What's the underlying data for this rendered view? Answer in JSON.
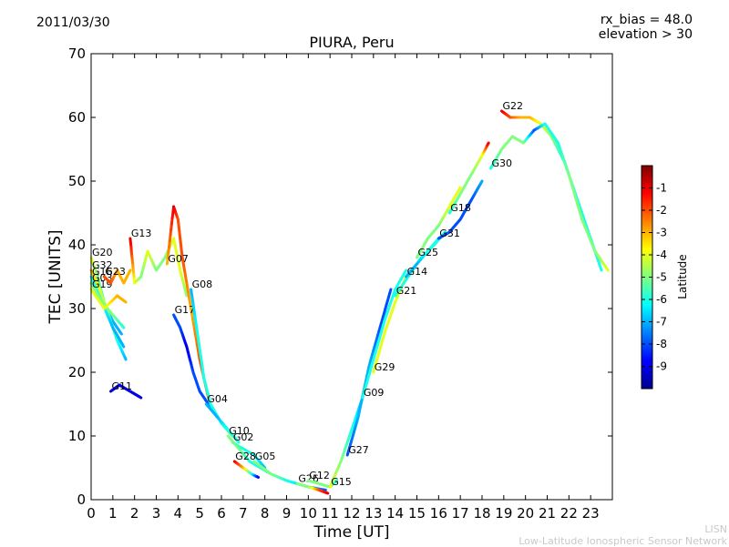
{
  "header": {
    "date": "2011/03/30",
    "rx_bias": "rx_bias = 48.0",
    "elevation": "elevation > 30"
  },
  "watermark": {
    "line1": "LISN",
    "line2": "Low-Latitude Ionospheric Sensor Network"
  },
  "chart_data": {
    "type": "scatter",
    "title": "PIURA, Peru",
    "xlabel": "Time [UT]",
    "ylabel": "TEC [UNITS]",
    "xlim": [
      0,
      24
    ],
    "ylim": [
      0,
      70
    ],
    "xticks": [
      0,
      1,
      2,
      3,
      4,
      5,
      6,
      7,
      8,
      9,
      10,
      11,
      12,
      13,
      14,
      15,
      16,
      17,
      18,
      19,
      20,
      21,
      22,
      23
    ],
    "yticks": [
      0,
      10,
      20,
      30,
      40,
      50,
      60,
      70
    ],
    "grid": false,
    "colorbar": {
      "label": "Latitude",
      "range": [
        -10,
        0
      ],
      "ticks": [
        -9,
        -8,
        -7,
        -6,
        -5,
        -4,
        -3,
        -2,
        -1
      ],
      "colormap": "jet"
    },
    "series": [
      {
        "name": "G20",
        "points": [
          [
            0,
            38,
            -4
          ],
          [
            0.3,
            35,
            -5
          ],
          [
            0.6,
            31,
            -6
          ],
          [
            1.0,
            28,
            -7
          ],
          [
            1.4,
            26,
            -7
          ]
        ]
      },
      {
        "name": "G32",
        "points": [
          [
            0,
            36,
            -3
          ],
          [
            0.4,
            33,
            -4
          ],
          [
            0.8,
            29,
            -5
          ],
          [
            1.2,
            25,
            -6
          ],
          [
            1.6,
            22,
            -7
          ]
        ]
      },
      {
        "name": "G16",
        "points": [
          [
            0,
            35,
            -6
          ],
          [
            0.5,
            31,
            -6
          ],
          [
            1.0,
            27,
            -7
          ],
          [
            1.5,
            24,
            -7
          ]
        ]
      },
      {
        "name": "G03",
        "points": [
          [
            0,
            34,
            -5
          ],
          [
            0.5,
            31,
            -5
          ],
          [
            1.0,
            29,
            -5
          ],
          [
            1.5,
            27,
            -6
          ]
        ]
      },
      {
        "name": "G19",
        "points": [
          [
            0,
            33,
            -4
          ],
          [
            0.6,
            30,
            -4
          ],
          [
            1.2,
            32,
            -3
          ],
          [
            1.6,
            31,
            -3
          ]
        ]
      },
      {
        "name": "G23",
        "points": [
          [
            0.6,
            35,
            -2
          ],
          [
            0.9,
            34,
            -2
          ],
          [
            1.2,
            36,
            -3
          ],
          [
            1.5,
            34,
            -3
          ],
          [
            1.8,
            36,
            -3
          ]
        ]
      },
      {
        "name": "G11",
        "points": [
          [
            0.9,
            17,
            -9
          ],
          [
            1.3,
            18,
            -9
          ],
          [
            1.8,
            17,
            -9
          ],
          [
            2.3,
            16,
            -9
          ]
        ]
      },
      {
        "name": "G13",
        "points": [
          [
            1.8,
            41,
            -1
          ],
          [
            2.0,
            34,
            -4
          ],
          [
            2.3,
            35,
            -5
          ],
          [
            2.6,
            39,
            -4
          ],
          [
            3.0,
            36,
            -5
          ],
          [
            3.4,
            38,
            -5
          ],
          [
            3.8,
            41,
            -4
          ],
          [
            4.1,
            36,
            -4
          ],
          [
            4.4,
            32,
            -5
          ]
        ]
      },
      {
        "name": "G07",
        "points": [
          [
            3.5,
            37,
            -3
          ],
          [
            3.8,
            46,
            -1
          ],
          [
            4.0,
            44,
            -2
          ],
          [
            4.2,
            38,
            -2
          ],
          [
            4.6,
            30,
            -3
          ],
          [
            5.0,
            22,
            -2
          ],
          [
            5.4,
            16,
            -2
          ]
        ]
      },
      {
        "name": "G17",
        "points": [
          [
            3.8,
            29,
            -8
          ],
          [
            4.1,
            27,
            -8
          ],
          [
            4.4,
            24,
            -9
          ],
          [
            4.7,
            20,
            -8
          ],
          [
            5.0,
            17,
            -8
          ],
          [
            5.4,
            15,
            -8
          ],
          [
            5.8,
            13,
            -8
          ]
        ]
      },
      {
        "name": "G08",
        "points": [
          [
            4.6,
            33,
            -7
          ],
          [
            4.9,
            26,
            -6
          ],
          [
            5.2,
            19,
            -6
          ],
          [
            5.5,
            15,
            -6
          ],
          [
            6.0,
            12,
            -6
          ],
          [
            6.5,
            10,
            -5
          ]
        ]
      },
      {
        "name": "G04",
        "points": [
          [
            5.3,
            15,
            -7
          ],
          [
            5.8,
            13,
            -7
          ],
          [
            6.3,
            11,
            -6
          ],
          [
            6.8,
            9,
            -6
          ]
        ]
      },
      {
        "name": "G10",
        "points": [
          [
            6.3,
            10,
            -5
          ],
          [
            6.8,
            8,
            -5
          ],
          [
            7.3,
            6,
            -6
          ],
          [
            7.8,
            5,
            -6
          ],
          [
            8.3,
            4,
            -6
          ]
        ]
      },
      {
        "name": "G02",
        "points": [
          [
            6.5,
            9,
            -5
          ],
          [
            7.0,
            8,
            -6
          ],
          [
            7.5,
            7,
            -6
          ],
          [
            8.0,
            5,
            -7
          ]
        ]
      },
      {
        "name": "G28",
        "points": [
          [
            6.6,
            6,
            -1
          ],
          [
            7.0,
            5,
            -3
          ],
          [
            7.4,
            4,
            -6
          ],
          [
            7.7,
            3.5,
            -9
          ]
        ]
      },
      {
        "name": "G05",
        "points": [
          [
            7.5,
            6,
            -5
          ],
          [
            8.3,
            4,
            -5
          ],
          [
            9.0,
            3,
            -6
          ],
          [
            10.0,
            2,
            -7
          ],
          [
            10.8,
            1.5,
            -8
          ]
        ]
      },
      {
        "name": "G26",
        "points": [
          [
            9.5,
            2.5,
            -5
          ],
          [
            10.0,
            2,
            -5
          ],
          [
            10.5,
            1.5,
            -2
          ],
          [
            10.9,
            1,
            -1
          ]
        ]
      },
      {
        "name": "G12",
        "points": [
          [
            10.0,
            3,
            -5
          ],
          [
            10.5,
            2.5,
            -5
          ],
          [
            11.0,
            2,
            -5
          ],
          [
            11.3,
            3,
            -6
          ]
        ]
      },
      {
        "name": "G15",
        "points": [
          [
            11.0,
            2,
            -4
          ],
          [
            11.5,
            6,
            -5
          ],
          [
            12.0,
            11,
            -6
          ],
          [
            12.5,
            16,
            -7
          ]
        ]
      },
      {
        "name": "G27",
        "points": [
          [
            11.8,
            7,
            -8
          ],
          [
            12.3,
            13,
            -7
          ],
          [
            12.8,
            21,
            -7
          ],
          [
            13.3,
            27,
            -8
          ],
          [
            13.8,
            33,
            -8
          ]
        ]
      },
      {
        "name": "G09",
        "points": [
          [
            12.5,
            16,
            -6
          ],
          [
            13.0,
            22,
            -6
          ],
          [
            13.5,
            28,
            -6
          ],
          [
            14.0,
            33,
            -6
          ],
          [
            14.5,
            36,
            -6
          ]
        ]
      },
      {
        "name": "G29",
        "points": [
          [
            13.0,
            20,
            -4
          ],
          [
            13.5,
            26,
            -4
          ],
          [
            14.0,
            31,
            -4
          ],
          [
            14.5,
            35,
            -4
          ],
          [
            15.0,
            37,
            -4
          ]
        ]
      },
      {
        "name": "G21",
        "points": [
          [
            14.0,
            32,
            -6
          ],
          [
            14.6,
            35,
            -6
          ],
          [
            15.2,
            38,
            -6
          ],
          [
            15.8,
            40,
            -6
          ],
          [
            16.3,
            42,
            -6
          ]
        ]
      },
      {
        "name": "G14",
        "points": [
          [
            14.5,
            35,
            -7
          ],
          [
            15.0,
            37,
            -7
          ],
          [
            15.5,
            39,
            -6
          ],
          [
            16.0,
            41,
            -6
          ]
        ]
      },
      {
        "name": "G25",
        "points": [
          [
            15.0,
            38,
            -5
          ],
          [
            15.5,
            41,
            -5
          ],
          [
            16.0,
            43,
            -5
          ],
          [
            16.5,
            46,
            -4
          ],
          [
            17.0,
            49,
            -4
          ]
        ]
      },
      {
        "name": "G31",
        "points": [
          [
            16.0,
            41,
            -8
          ],
          [
            16.5,
            42,
            -8
          ],
          [
            17.0,
            44,
            -8
          ],
          [
            17.5,
            47,
            -8
          ],
          [
            18.0,
            50,
            -7
          ]
        ]
      },
      {
        "name": "G18",
        "points": [
          [
            16.5,
            45,
            -6
          ],
          [
            17.0,
            48,
            -5
          ],
          [
            17.5,
            51,
            -5
          ],
          [
            18.0,
            54,
            -4
          ],
          [
            18.3,
            56,
            -1
          ]
        ]
      },
      {
        "name": "G22",
        "points": [
          [
            18.9,
            61,
            -1
          ],
          [
            19.3,
            60,
            -2
          ],
          [
            19.8,
            60,
            -3
          ],
          [
            20.2,
            60,
            -3
          ],
          [
            20.7,
            59,
            -4
          ],
          [
            21.2,
            57,
            -5
          ],
          [
            21.8,
            53,
            -6
          ],
          [
            22.4,
            47,
            -6
          ],
          [
            23.0,
            41,
            -6
          ],
          [
            23.5,
            36,
            -6
          ]
        ]
      },
      {
        "name": "G30",
        "points": [
          [
            18.4,
            52,
            -6
          ],
          [
            18.9,
            55,
            -5
          ],
          [
            19.4,
            57,
            -5
          ],
          [
            19.9,
            56,
            -5
          ],
          [
            20.4,
            58,
            -8
          ],
          [
            20.9,
            59,
            -6
          ],
          [
            21.5,
            56,
            -6
          ],
          [
            22.0,
            51,
            -5
          ],
          [
            22.6,
            44,
            -5
          ],
          [
            23.2,
            39,
            -5
          ],
          [
            23.8,
            36,
            -4
          ]
        ]
      }
    ],
    "labels": [
      "G20",
      "G32",
      "G16",
      "G03",
      "G19",
      "G23",
      "G13",
      "G07",
      "G08",
      "G17",
      "G11",
      "G04",
      "G10",
      "G02",
      "G28",
      "G05",
      "G26",
      "G12",
      "G15",
      "G27",
      "G09",
      "G29",
      "G21",
      "G14",
      "G25",
      "G31",
      "G18",
      "G22",
      "G30"
    ]
  }
}
